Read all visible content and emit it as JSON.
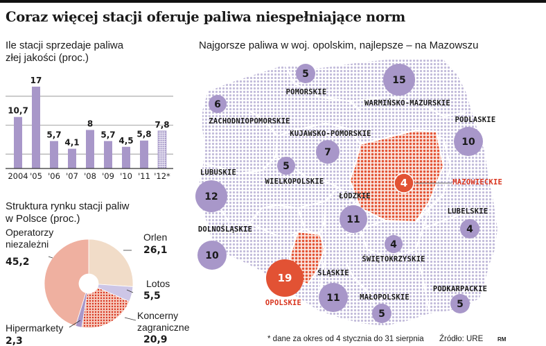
{
  "title": "Coraz więcej stacji oferuje paliwa niespełniające norm",
  "bar_section": {
    "title_line1": "Ile stacji sprzedaje paliwa",
    "title_line2": "złej jakości (proc.)"
  },
  "pie_section": {
    "title_line1": "Struktura rynku stacji paliw",
    "title_line2": "w Polsce (proc.)"
  },
  "map_section": {
    "title": "Najgorsze paliwa w woj. opolskim, najlepsze – na Mazowszu"
  },
  "footnote": "* dane za okres od 4 stycznia do 31 sierpnia",
  "source": "Źródło: URE",
  "signature": "RM",
  "colors": {
    "purple": "#a897c9",
    "purple_dark": "#8d7bb8",
    "red": "#e25234",
    "red_light": "#ef9b86",
    "peach": "#f1dcc8",
    "lavender": "#cdc6e6",
    "dots": "#c2bbda"
  },
  "chart_data": [
    {
      "type": "bar",
      "categories": [
        "2004",
        "'05",
        "'06",
        "'07",
        "'08",
        "'09",
        "'10",
        "'11",
        "'12*"
      ],
      "values": [
        10.7,
        17,
        5.7,
        4.1,
        8,
        5.7,
        4.5,
        5.8,
        7.8
      ],
      "value_labels": [
        "10,7",
        "17",
        "5,7",
        "4,1",
        "8",
        "5,7",
        "4,5",
        "5,8",
        "7,8"
      ],
      "ylim": [
        0,
        18
      ],
      "grid": true,
      "last_bar_style": "dotted"
    },
    {
      "type": "pie",
      "style": "donut",
      "slices": [
        {
          "label_line1": "Orlen",
          "label_line2": "",
          "value": 26.1,
          "value_label": "26,1",
          "color": "#f1dcc8"
        },
        {
          "label_line1": "Lotos",
          "label_line2": "",
          "value": 5.5,
          "value_label": "5,5",
          "color": "#cdc6e6"
        },
        {
          "label_line1": "Koncerny",
          "label_line2": "zagraniczne",
          "value": 20.9,
          "value_label": "20,9",
          "color": "#e8826d"
        },
        {
          "label_line1": "Hipermarkety",
          "label_line2": "",
          "value": 2.3,
          "value_label": "2,3",
          "color": "#a897c9"
        },
        {
          "label_line1": "Operatorzy",
          "label_line2": "niezależni",
          "value": 45.2,
          "value_label": "45,2",
          "color": "#efb0a0"
        }
      ]
    },
    {
      "type": "map",
      "regions": [
        {
          "name": "POMORSKIE",
          "value": 5
        },
        {
          "name": "WARMIŃSKO-MAZURSKIE",
          "value": 15
        },
        {
          "name": "ZACHODNIOPOMORSKIE",
          "value": 6
        },
        {
          "name": "PODLASKIE",
          "value": 10
        },
        {
          "name": "KUJAWSKO-POMORSKIE",
          "value": 7
        },
        {
          "name": "WIELKOPOLSKIE",
          "value": 5
        },
        {
          "name": "MAZOWIECKIE",
          "value": 4
        },
        {
          "name": "LUBUSKIE",
          "value": 12
        },
        {
          "name": "ŁÓDZKIE",
          "value": 11
        },
        {
          "name": "LUBELSKIE",
          "value": 4
        },
        {
          "name": "DOLNOŚLĄSKIE",
          "value": 10
        },
        {
          "name": "ŚWIĘTOKRZYSKIE",
          "value": 4
        },
        {
          "name": "OPOLSKIE",
          "value": 19
        },
        {
          "name": "ŚLĄSKIE",
          "value": 11
        },
        {
          "name": "MAŁOPOLSKIE",
          "value": 5
        },
        {
          "name": "PODKARPACKIE",
          "value": 5
        }
      ],
      "highlight_worst": "OPOLSKIE",
      "highlight_best": "MAZOWIECKIE"
    }
  ]
}
